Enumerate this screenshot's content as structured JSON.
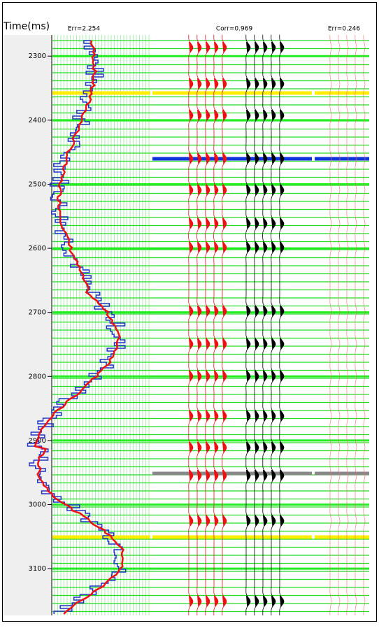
{
  "chart_data": {
    "type": "well-tie",
    "y_label": "Time(ms)",
    "track_labels": [
      "Err=2.254",
      "Corr=0.969",
      "Err=0.246"
    ],
    "ylim": [
      2267,
      3173
    ],
    "y_inverted": true,
    "yticks": [
      2300,
      2400,
      2500,
      2600,
      2700,
      2800,
      2900,
      3000,
      3100
    ],
    "grid": true
  }
}
